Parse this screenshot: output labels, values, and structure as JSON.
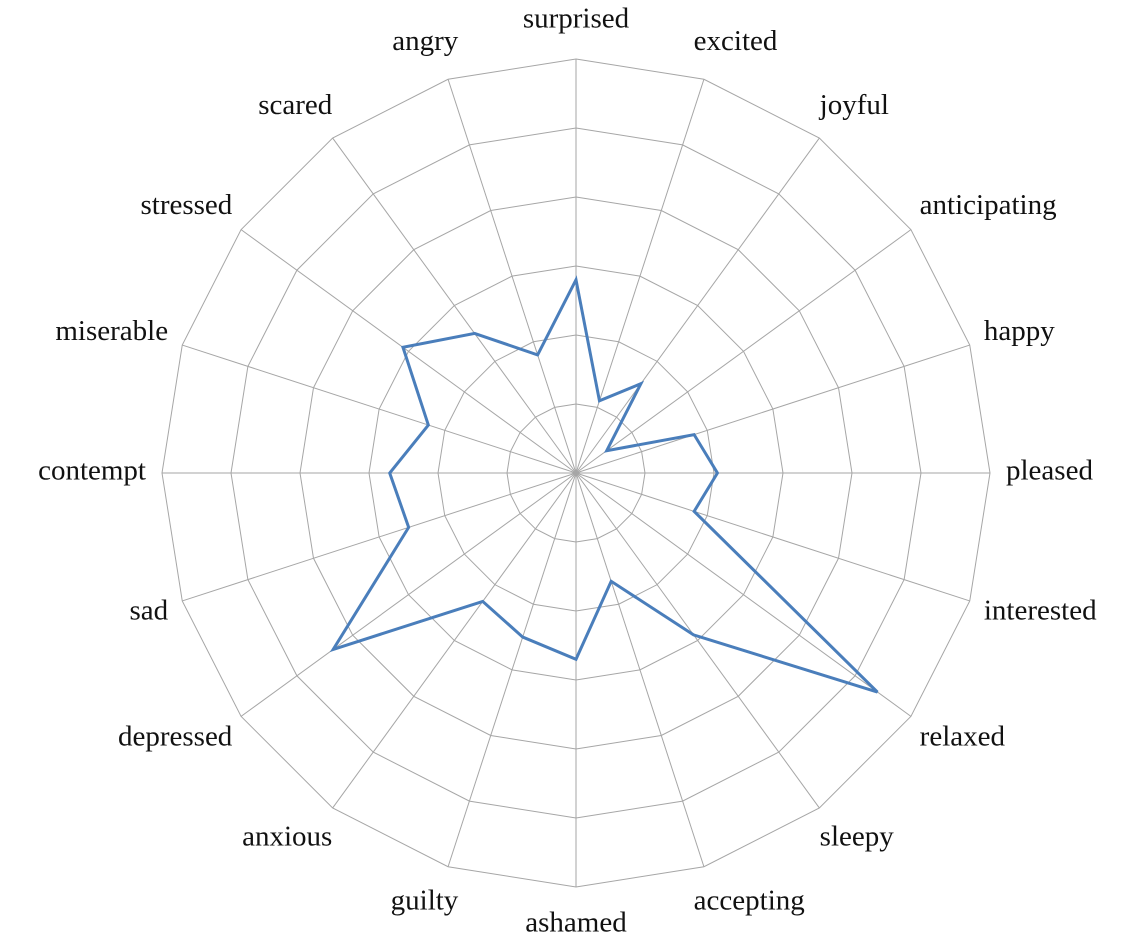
{
  "chart_data": {
    "type": "radar",
    "categories": [
      "surprised",
      "excited",
      "joyful",
      "anticipating",
      "happy",
      "pleased",
      "interested",
      "relaxed",
      "sleepy",
      "accepting",
      "ashamed",
      "guilty",
      "anxious",
      "depressed",
      "sad",
      "contempt",
      "miserable",
      "stressed",
      "scared",
      "angry"
    ],
    "values": [
      2.8,
      1.1,
      1.6,
      0.55,
      1.8,
      2.05,
      1.8,
      5.4,
      2.9,
      1.65,
      2.7,
      2.5,
      2.3,
      4.35,
      2.55,
      2.7,
      2.25,
      3.1,
      2.5,
      1.8
    ],
    "color": "#4a7ebb",
    "ylim": [
      0,
      6
    ],
    "yticks": [
      0,
      1,
      2,
      3,
      4,
      5,
      6
    ],
    "grid": true
  }
}
